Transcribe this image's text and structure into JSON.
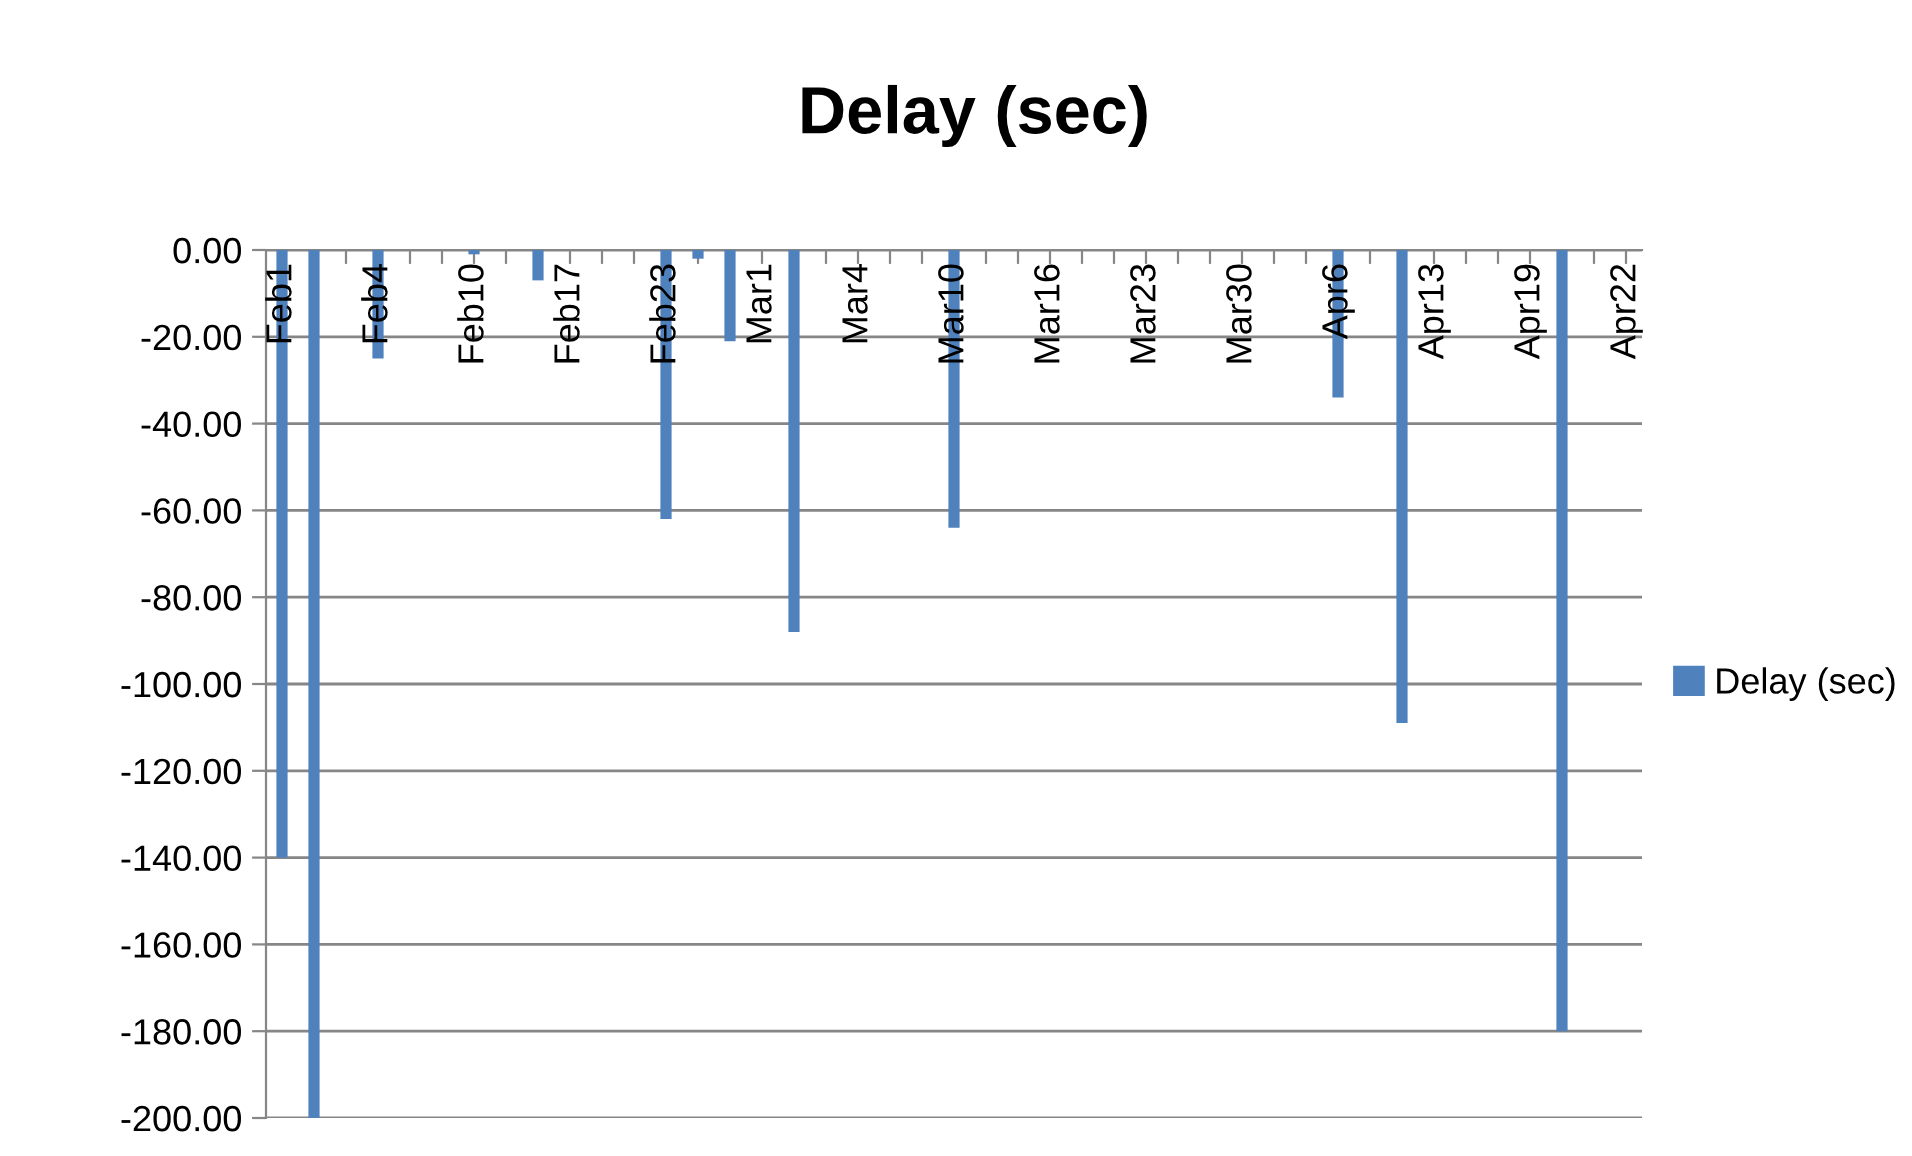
{
  "chart_data": {
    "type": "bar",
    "title": "Delay (sec)",
    "categories": [
      "Feb1",
      null,
      null,
      "Feb4",
      null,
      null,
      "Feb10",
      null,
      null,
      "Feb17",
      null,
      null,
      "Feb23",
      null,
      null,
      "Mar1",
      null,
      null,
      "Mar4",
      null,
      null,
      "Mar10",
      null,
      null,
      "Mar16",
      null,
      null,
      "Mar23",
      null,
      null,
      "Mar30",
      null,
      null,
      "Apr6",
      null,
      null,
      "Apr13",
      null,
      null,
      "Apr19",
      null,
      null,
      "Apr22"
    ],
    "series": [
      {
        "name": "Delay (sec)",
        "color": "#4f81bd",
        "values": [
          -140,
          -200,
          null,
          -25,
          null,
          null,
          -1,
          null,
          -7,
          null,
          null,
          null,
          -62,
          -2,
          -21,
          null,
          -88,
          null,
          null,
          null,
          null,
          -64,
          null,
          null,
          null,
          null,
          null,
          null,
          null,
          null,
          null,
          null,
          null,
          -34,
          null,
          -109,
          null,
          null,
          null,
          null,
          -180,
          null,
          null
        ]
      }
    ],
    "ylim": [
      -200,
      0
    ],
    "yticks": [
      {
        "value": 0,
        "label": "0.00"
      },
      {
        "value": -20,
        "label": "-20.00"
      },
      {
        "value": -40,
        "label": "-40.00"
      },
      {
        "value": -60,
        "label": "-60.00"
      },
      {
        "value": -80,
        "label": "-80.00"
      },
      {
        "value": -100,
        "label": "-100.00"
      },
      {
        "value": -120,
        "label": "-120.00"
      },
      {
        "value": -140,
        "label": "-140.00"
      },
      {
        "value": -160,
        "label": "-160.00"
      },
      {
        "value": -180,
        "label": "-180.00"
      },
      {
        "value": -200,
        "label": "-200.00"
      }
    ],
    "grid": "y",
    "legend": "right"
  }
}
